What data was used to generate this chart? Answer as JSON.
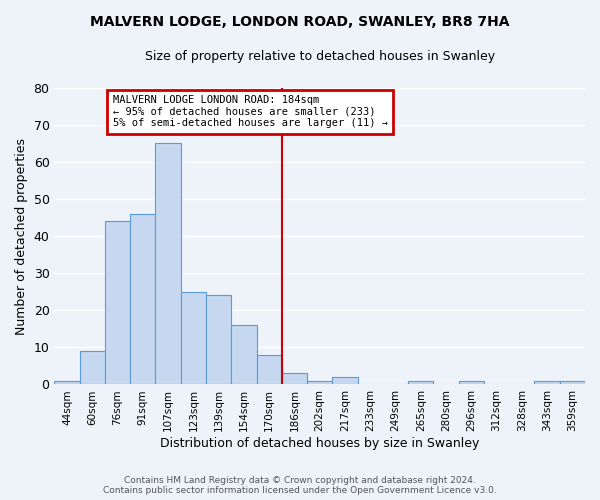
{
  "title": "MALVERN LODGE, LONDON ROAD, SWANLEY, BR8 7HA",
  "subtitle": "Size of property relative to detached houses in Swanley",
  "xlabel": "Distribution of detached houses by size in Swanley",
  "ylabel": "Number of detached properties",
  "categories": [
    "44sqm",
    "60sqm",
    "76sqm",
    "91sqm",
    "107sqm",
    "123sqm",
    "139sqm",
    "154sqm",
    "170sqm",
    "186sqm",
    "202sqm",
    "217sqm",
    "233sqm",
    "249sqm",
    "265sqm",
    "280sqm",
    "296sqm",
    "312sqm",
    "328sqm",
    "343sqm",
    "359sqm"
  ],
  "values": [
    1,
    9,
    44,
    46,
    65,
    25,
    24,
    16,
    8,
    3,
    1,
    2,
    0,
    0,
    1,
    0,
    1,
    0,
    0,
    1,
    1
  ],
  "bar_color": "#c5d8f0",
  "bar_edge_color": "#5b9bd5",
  "ylim": [
    0,
    80
  ],
  "yticks": [
    0,
    10,
    20,
    30,
    40,
    50,
    60,
    70,
    80
  ],
  "property_line_idx": 9,
  "annotation_title": "MALVERN LODGE LONDON ROAD: 184sqm",
  "annotation_line1": "← 95% of detached houses are smaller (233)",
  "annotation_line2": "5% of semi-detached houses are larger (11) →",
  "footer_line1": "Contains HM Land Registry data © Crown copyright and database right 2024.",
  "footer_line2": "Contains public sector information licensed under the Open Government Licence v3.0.",
  "background_color": "#eef2f9",
  "grid_color": "#ffffff",
  "annotation_box_color": "#cc0000",
  "red_line_color": "#cc0000"
}
